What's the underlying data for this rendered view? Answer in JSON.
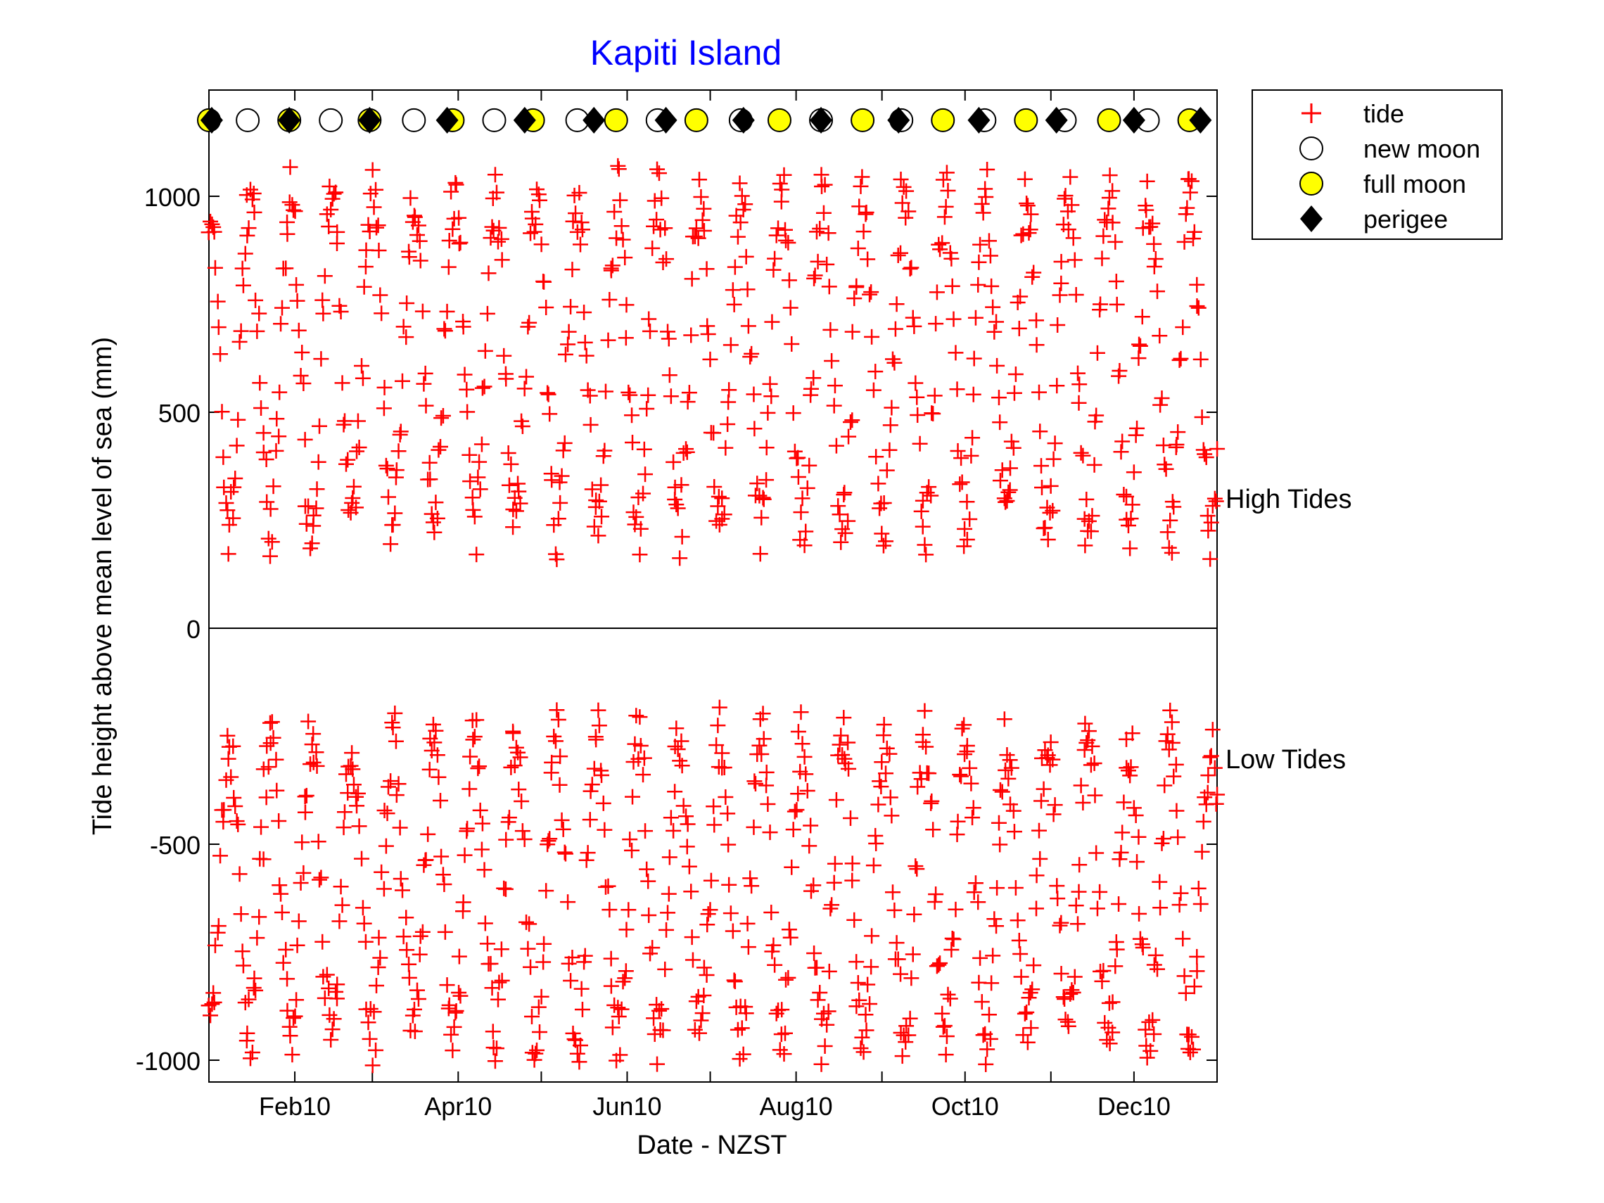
{
  "chart_data": {
    "type": "scatter",
    "title": "Kapiti Island",
    "xlabel": "Date - NZST",
    "ylabel": "Tide height above mean level of sea (mm)",
    "xlim": [
      "2010-01-01",
      "2010-12-31"
    ],
    "ylim": [
      -1050,
      1250
    ],
    "x_ticks": [
      {
        "date": "2010-02-01",
        "label": "Feb10"
      },
      {
        "date": "2010-04-01",
        "label": "Apr10"
      },
      {
        "date": "2010-06-01",
        "label": "Jun10"
      },
      {
        "date": "2010-08-01",
        "label": "Aug10"
      },
      {
        "date": "2010-10-01",
        "label": "Oct10"
      },
      {
        "date": "2010-12-01",
        "label": "Dec10"
      }
    ],
    "minor_x_ticks": [
      "2010-03-01",
      "2010-05-01",
      "2010-07-01",
      "2010-09-01",
      "2010-11-01"
    ],
    "y_ticks": [
      {
        "value": 1000,
        "label": "1000"
      },
      {
        "value": 500,
        "label": "500"
      },
      {
        "value": 0,
        "label": "0"
      },
      {
        "value": -500,
        "label": "-500"
      },
      {
        "value": -1000,
        "label": "-1000"
      }
    ],
    "zero_line": 0,
    "annotations": [
      {
        "text": "High Tides",
        "y": 300
      },
      {
        "text": "Low Tides",
        "y": -300
      }
    ],
    "legend": {
      "position": "outside-top-right",
      "entries": [
        {
          "key": "tide",
          "label": "tide"
        },
        {
          "key": "new_moon",
          "label": "new moon"
        },
        {
          "key": "full_moon",
          "label": "full moon"
        },
        {
          "key": "perigee",
          "label": "perigee"
        }
      ]
    },
    "colors": {
      "title": "#0000ff",
      "tide": "#ff0000",
      "full_moon": "#ffff00",
      "new_moon": "#ffffff",
      "perigee": "#000000"
    },
    "marker_level": 1180,
    "new_moon": [
      "2010-01-15",
      "2010-02-14",
      "2010-03-16",
      "2010-04-14",
      "2010-05-14",
      "2010-06-12",
      "2010-07-12",
      "2010-08-10",
      "2010-09-08",
      "2010-10-08",
      "2010-11-06",
      "2010-12-06"
    ],
    "full_moon": [
      "2010-01-01",
      "2010-01-30",
      "2010-02-28",
      "2010-03-30",
      "2010-04-28",
      "2010-05-28",
      "2010-06-26",
      "2010-07-26",
      "2010-08-25",
      "2010-09-23",
      "2010-10-23",
      "2010-11-22",
      "2010-12-21"
    ],
    "perigee": [
      "2010-01-02",
      "2010-01-30",
      "2010-02-28",
      "2010-03-28",
      "2010-04-25",
      "2010-05-20",
      "2010-06-15",
      "2010-07-13",
      "2010-08-10",
      "2010-09-07",
      "2010-10-06",
      "2010-11-03",
      "2010-12-01",
      "2010-12-25"
    ],
    "tide_model": {
      "high": {
        "mean": 620,
        "amplitude": 380
      },
      "low": {
        "mean": -600,
        "amplitude": 340
      },
      "samples_per_day": 2
    }
  }
}
